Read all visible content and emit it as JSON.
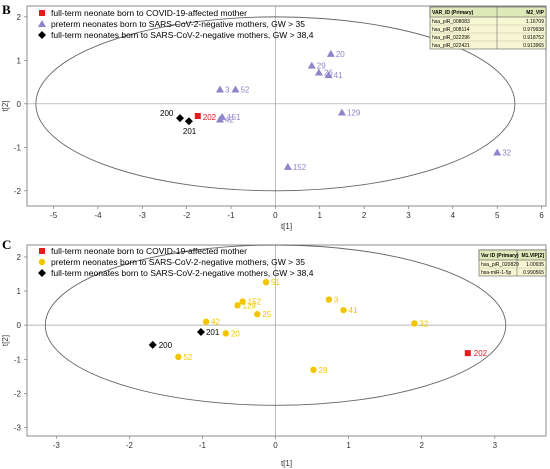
{
  "colors": {
    "covid_mother": "#e41a1c",
    "preterm_b": "#8c86c8",
    "preterm_c": "#f2c500",
    "fullterm_negative": "#000000",
    "plot_border": "#8c8c8c",
    "ellipse": "#666666",
    "vip_table_fill": "#f6f6d2",
    "vip_header_fill": "#dfe8b8"
  },
  "panels": [
    {
      "letter": "B",
      "xlabel": "t[1]",
      "ylabel": "t[2]",
      "xlim": [
        -5.6,
        6.1
      ],
      "ylim": [
        -2.35,
        2.25
      ],
      "xticks": [
        -5,
        -4,
        -3,
        -2,
        -1,
        0,
        1,
        2,
        3,
        4,
        5,
        6
      ],
      "yticks": [
        -2,
        -1,
        0,
        1,
        2
      ],
      "ellipse": {
        "cx": 0,
        "cy": 0,
        "rx": 5.4,
        "ry": 2.0
      },
      "legend": [
        {
          "label": "full-term neonate born to COVID-19-affected mother",
          "marker": "square",
          "color": "#e41a1c"
        },
        {
          "label": "preterm neonates born to SARS-CoV-2-negative mothers, GW > 35",
          "marker": "triangle",
          "color": "#8c86c8"
        },
        {
          "label": "full-term neonates born to SARS-CoV-2-negative mothers, GW > 38,4",
          "marker": "diamond",
          "color": "#000000"
        }
      ],
      "vip_table": {
        "headers": [
          "VAR_ID (Primary)",
          "M2_VIP"
        ],
        "rows": [
          [
            "hsa_piR_008083",
            "1.16709"
          ],
          [
            "hsa_piR_008114",
            "0.979938"
          ],
          [
            "hsa_piR_022296",
            "0.918752"
          ],
          [
            "hsa_piR_022421",
            "0.913965"
          ]
        ]
      }
    },
    {
      "letter": "C",
      "xlabel": "t[1]",
      "ylabel": "t[2]",
      "xlim": [
        -3.4,
        3.7
      ],
      "ylim": [
        -3.25,
        2.35
      ],
      "xticks": [
        -3,
        -2,
        -1,
        0,
        1,
        2,
        3
      ],
      "yticks": [
        -3,
        -2,
        -1,
        0,
        1,
        2
      ],
      "ellipse": {
        "cx": 0,
        "cy": 0,
        "rx": 3.15,
        "ry": 2.35
      },
      "legend": [
        {
          "label": "full-term neonate born to COVID-19-affected mother",
          "marker": "square",
          "color": "#e41a1c"
        },
        {
          "label": "preterm neonates born to SARS-CoV-2-negative mothers, GW > 35",
          "marker": "circle",
          "color": "#f2c500"
        },
        {
          "label": "full-term neonates born to SARS-CoV-2-negative mothers, GW > 38,4",
          "marker": "diamond",
          "color": "#000000"
        }
      ],
      "vip_table": {
        "headers": [
          "Var ID (Primary)",
          "M1.VIP[2]"
        ],
        "rows": [
          [
            "hsa_piR_020829",
            "1.00935"
          ],
          [
            "hsa-miR-1-5p",
            "0.990565"
          ]
        ]
      }
    }
  ],
  "chart_data": [
    {
      "type": "scatter",
      "title": "",
      "xlabel": "t[1]",
      "ylabel": "t[2]",
      "xlim": [
        -5.6,
        6.1
      ],
      "ylim": [
        -2.35,
        2.25
      ],
      "series": [
        {
          "name": "full-term neonate born to COVID-19-affected mother",
          "marker": "square",
          "color": "#e41a1c",
          "points": [
            {
              "label": "202",
              "x": -1.75,
              "y": -0.28
            }
          ]
        },
        {
          "name": "preterm neonates born to SARS-CoV-2-negative mothers, GW > 35",
          "marker": "triangle",
          "color": "#8c86c8",
          "points": [
            {
              "label": "20",
              "x": 1.25,
              "y": 1.15
            },
            {
              "label": "29",
              "x": 0.82,
              "y": 0.88
            },
            {
              "label": "26",
              "x": 0.98,
              "y": 0.72
            },
            {
              "label": "41",
              "x": 1.2,
              "y": 0.66
            },
            {
              "label": "3",
              "x": -1.25,
              "y": 0.33
            },
            {
              "label": "52",
              "x": -0.9,
              "y": 0.33
            },
            {
              "label": "129",
              "x": 1.5,
              "y": -0.2
            },
            {
              "label": "151",
              "x": -1.2,
              "y": -0.3
            },
            {
              "label": "42",
              "x": -1.25,
              "y": -0.36
            },
            {
              "label": "152",
              "x": 0.28,
              "y": -1.45
            },
            {
              "label": "32",
              "x": 5.0,
              "y": -1.12
            }
          ]
        },
        {
          "name": "full-term neonates born to SARS-CoV-2-negative mothers, GW > 38,4",
          "marker": "diamond",
          "color": "#000000",
          "points": [
            {
              "label": "200",
              "x": -2.15,
              "y": -0.33
            },
            {
              "label": "201",
              "x": -1.95,
              "y": -0.4
            }
          ]
        }
      ]
    },
    {
      "type": "scatter",
      "title": "",
      "xlabel": "t[1]",
      "ylabel": "t[2]",
      "xlim": [
        -3.4,
        3.7
      ],
      "ylim": [
        -3.25,
        2.35
      ],
      "series": [
        {
          "name": "full-term neonate born to COVID-19-affected mother",
          "marker": "square",
          "color": "#e41a1c",
          "points": [
            {
              "label": "202",
              "x": 2.63,
              "y": -0.82
            }
          ]
        },
        {
          "name": "preterm neonates born to SARS-CoV-2-negative mothers, GW > 35",
          "marker": "circle",
          "color": "#f2c500",
          "points": [
            {
              "label": "51",
              "x": -0.13,
              "y": 1.26
            },
            {
              "label": "3",
              "x": 0.73,
              "y": 0.75
            },
            {
              "label": "152",
              "x": -0.45,
              "y": 0.69
            },
            {
              "label": "129",
              "x": -0.52,
              "y": 0.58
            },
            {
              "label": "41",
              "x": 0.93,
              "y": 0.44
            },
            {
              "label": "25",
              "x": -0.25,
              "y": 0.32
            },
            {
              "label": "42",
              "x": -0.95,
              "y": 0.1
            },
            {
              "label": "32",
              "x": 1.9,
              "y": 0.05
            },
            {
              "label": "20",
              "x": -0.68,
              "y": -0.24
            },
            {
              "label": "52",
              "x": -1.33,
              "y": -0.93
            },
            {
              "label": "28",
              "x": 0.52,
              "y": -1.31
            }
          ]
        },
        {
          "name": "full-term neonates born to SARS-CoV-2-negative mothers, GW > 38,4",
          "marker": "diamond",
          "color": "#000000",
          "points": [
            {
              "label": "201",
              "x": -1.02,
              "y": -0.2
            },
            {
              "label": "200",
              "x": -1.68,
              "y": -0.58
            }
          ]
        }
      ]
    }
  ]
}
